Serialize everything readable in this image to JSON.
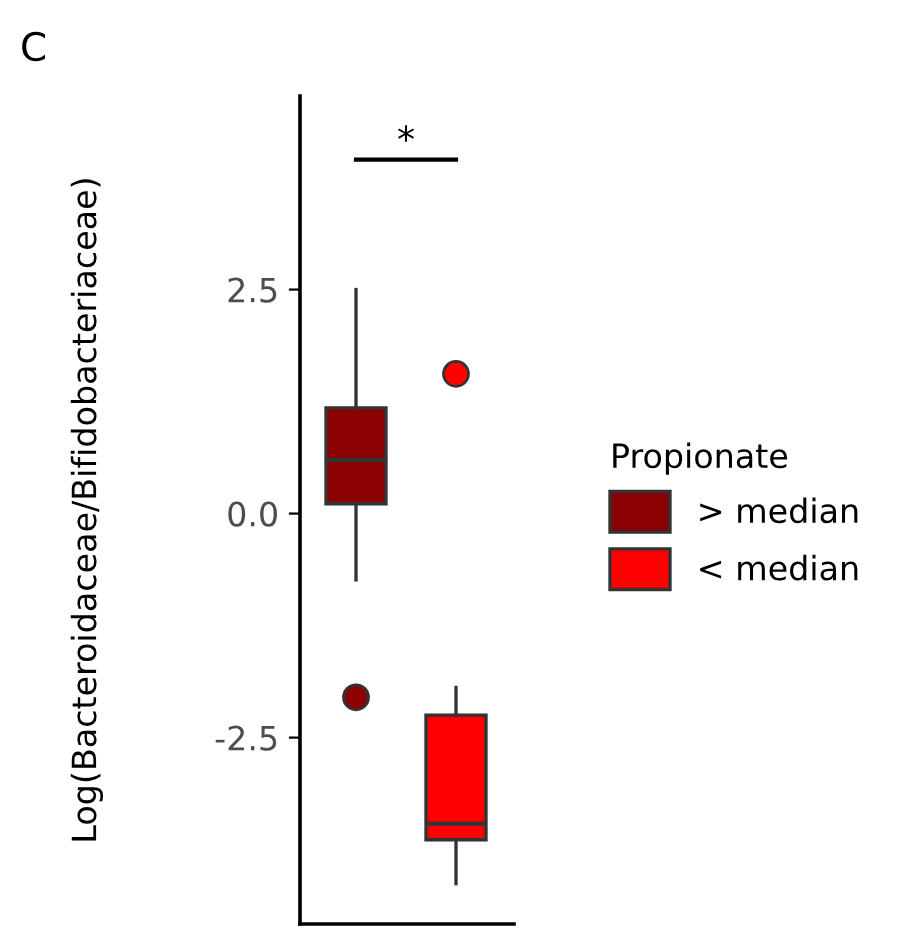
{
  "chart_data": {
    "type": "box",
    "title": "C",
    "ylabel": "Log(Bacteroidaceae/Bifidobacteriaceae)",
    "legend_title": "Propionate",
    "categories": [
      null,
      null
    ],
    "series": [
      {
        "name": "> median",
        "color": "#8b0000",
        "boxes": [
          {
            "low": -0.74,
            "q1": 0.11,
            "median": 0.6,
            "q3": 1.18,
            "high": 2.5,
            "outliers": [
              -2.05
            ]
          },
          null
        ]
      },
      {
        "name": "< median",
        "color": "#ff0000",
        "boxes": [
          null,
          {
            "low": -4.13,
            "q1": -3.64,
            "median": -3.46,
            "q3": -2.25,
            "high": -1.94,
            "outliers": [
              1.56
            ]
          }
        ]
      }
    ],
    "ylim": [
      -4.58,
      4.66
    ],
    "yticks": [
      {
        "value": 2.5,
        "label": "2.5"
      },
      {
        "value": 0,
        "label": "0.0"
      },
      {
        "value": -2.5,
        "label": "-2.5"
      }
    ],
    "annotations": [
      "*"
    ],
    "grid": false,
    "legend": "right"
  }
}
